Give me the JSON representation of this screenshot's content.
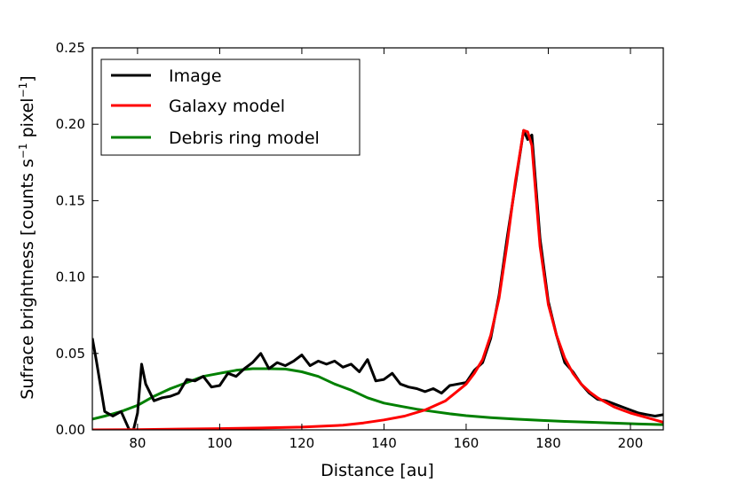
{
  "chart_data": {
    "type": "line",
    "title": "",
    "xlabel": "Distance [au]",
    "ylabel": {
      "main": "Sufrace brightness [counts s",
      "sup1": "−1",
      "mid": " pixel",
      "sup2": "−1",
      "end": "]"
    },
    "xlim": [
      69,
      208
    ],
    "ylim": [
      0,
      0.25
    ],
    "xticks": [
      80,
      100,
      120,
      140,
      160,
      180,
      200
    ],
    "xtick_labels": [
      "80",
      "100",
      "120",
      "140",
      "160",
      "180",
      "200"
    ],
    "yticks": [
      0,
      0.05,
      0.1,
      0.15,
      0.2,
      0.25
    ],
    "ytick_labels": [
      "0.00",
      "0.05",
      "0.10",
      "0.15",
      "0.20",
      "0.25"
    ],
    "legend_position": "top-left",
    "series": [
      {
        "name": "Image",
        "color": "#000000",
        "x": [
          69,
          70,
          72,
          74,
          76,
          78,
          79,
          80,
          81,
          82,
          84,
          86,
          88,
          90,
          92,
          94,
          96,
          98,
          100,
          102,
          104,
          106,
          108,
          110,
          112,
          114,
          116,
          118,
          120,
          122,
          124,
          126,
          128,
          130,
          132,
          134,
          136,
          138,
          140,
          142,
          144,
          146,
          148,
          150,
          152,
          154,
          156,
          158,
          160,
          162,
          164,
          166,
          168,
          170,
          172,
          174,
          175,
          176,
          178,
          180,
          182,
          184,
          186,
          188,
          190,
          192,
          194,
          196,
          198,
          200,
          202,
          204,
          206,
          208
        ],
        "y": [
          0.06,
          0.045,
          0.012,
          0.009,
          0.012,
          0.0,
          0.0,
          0.011,
          0.043,
          0.03,
          0.019,
          0.021,
          0.022,
          0.024,
          0.033,
          0.032,
          0.035,
          0.028,
          0.029,
          0.037,
          0.035,
          0.04,
          0.044,
          0.05,
          0.04,
          0.044,
          0.042,
          0.045,
          0.049,
          0.042,
          0.045,
          0.043,
          0.045,
          0.041,
          0.043,
          0.038,
          0.046,
          0.032,
          0.033,
          0.037,
          0.03,
          0.028,
          0.027,
          0.025,
          0.027,
          0.024,
          0.029,
          0.03,
          0.031,
          0.039,
          0.044,
          0.06,
          0.088,
          0.126,
          0.161,
          0.196,
          0.19,
          0.193,
          0.125,
          0.084,
          0.062,
          0.044,
          0.038,
          0.03,
          0.024,
          0.02,
          0.019,
          0.017,
          0.015,
          0.013,
          0.011,
          0.01,
          0.009,
          0.01
        ]
      },
      {
        "name": "Galaxy model",
        "color": "#ff0000",
        "x": [
          69,
          80,
          90,
          100,
          110,
          120,
          130,
          135,
          140,
          145,
          150,
          155,
          160,
          162,
          164,
          166,
          168,
          170,
          172,
          174,
          175,
          176,
          178,
          180,
          182,
          184,
          186,
          188,
          190,
          192,
          194,
          196,
          198,
          200,
          204,
          208
        ],
        "y": [
          0.0,
          0.0002,
          0.0005,
          0.0008,
          0.0012,
          0.0018,
          0.003,
          0.0045,
          0.0065,
          0.009,
          0.013,
          0.019,
          0.03,
          0.037,
          0.046,
          0.062,
          0.086,
          0.122,
          0.163,
          0.196,
          0.195,
          0.186,
          0.12,
          0.082,
          0.062,
          0.047,
          0.037,
          0.03,
          0.025,
          0.021,
          0.018,
          0.015,
          0.013,
          0.011,
          0.008,
          0.005
        ]
      },
      {
        "name": "Debris ring model",
        "color": "#008000",
        "x": [
          69,
          72,
          76,
          80,
          84,
          88,
          92,
          96,
          100,
          104,
          108,
          112,
          116,
          120,
          124,
          128,
          132,
          136,
          140,
          144,
          148,
          152,
          156,
          160,
          166,
          172,
          178,
          184,
          190,
          196,
          202,
          208
        ],
        "y": [
          0.007,
          0.009,
          0.012,
          0.016,
          0.022,
          0.027,
          0.031,
          0.035,
          0.037,
          0.039,
          0.04,
          0.04,
          0.0398,
          0.038,
          0.035,
          0.03,
          0.026,
          0.021,
          0.0175,
          0.0155,
          0.0135,
          0.012,
          0.0105,
          0.0093,
          0.008,
          0.007,
          0.0062,
          0.0055,
          0.005,
          0.0044,
          0.0038,
          0.0034
        ]
      }
    ]
  }
}
